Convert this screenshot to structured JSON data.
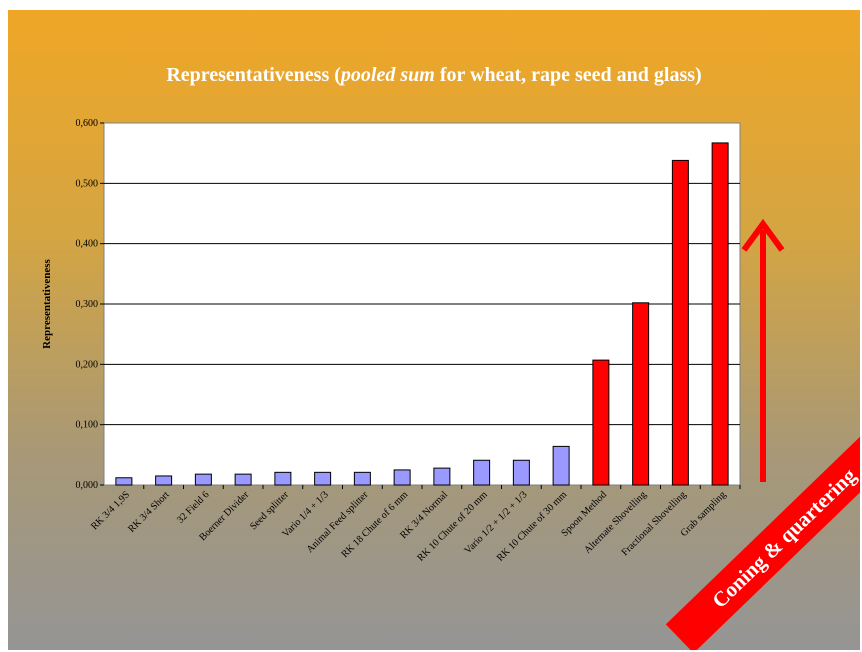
{
  "chart_data": {
    "type": "bar",
    "title_pre": "Representativeness (",
    "title_italic": "pooled sum",
    "title_post": " for wheat, rape seed and glass)",
    "ylabel": "Representativeness",
    "xlabel": "",
    "ylim": [
      0,
      0.6
    ],
    "yticks": [
      "0,000",
      "0,100",
      "0,200",
      "0,300",
      "0,400",
      "0,500",
      "0,600"
    ],
    "grid": true,
    "categories": [
      "RK 3/4 1,9S",
      "RK 3/4 Short",
      "32 Field 6",
      "Boerner Divider",
      "Seed splitter",
      "Vario 1/4 + 1/3",
      "Animal Feed splitter",
      "RK 18 Chute of 6 mm",
      "RK 3/4 Normal",
      "RK 10 Chute of 20 mm",
      "Vario 1/2 + 1/2 + 1/3",
      "RK 10 Chute of 30 mm",
      "Spoon Method",
      "Alternate Shovelling",
      "Fractional Shovelling",
      "Grab sampling"
    ],
    "values": [
      0.012,
      0.015,
      0.018,
      0.018,
      0.021,
      0.021,
      0.021,
      0.025,
      0.028,
      0.041,
      0.041,
      0.064,
      0.207,
      0.302,
      0.538,
      0.567
    ],
    "bar_colors": [
      "#9999ff",
      "#9999ff",
      "#9999ff",
      "#9999ff",
      "#9999ff",
      "#9999ff",
      "#9999ff",
      "#9999ff",
      "#9999ff",
      "#9999ff",
      "#9999ff",
      "#9999ff",
      "#ff0000",
      "#ff0000",
      "#ff0000",
      "#ff0000"
    ],
    "annotation": "Coning & quartering",
    "colors": {
      "low_group": "#9999ff",
      "high_group": "#ff0000",
      "arrow": "#ff0000"
    }
  }
}
